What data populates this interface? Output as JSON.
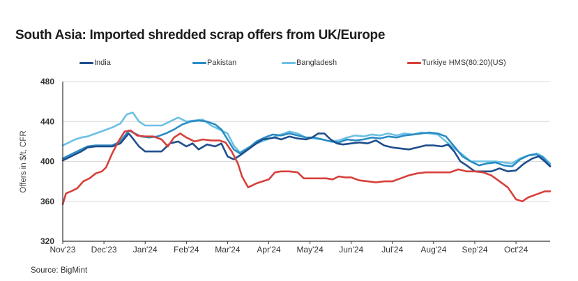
{
  "chart_data": {
    "type": "line",
    "title": "South Asia: Imported shredded scrap offers from UK/Europe",
    "xlabel": "",
    "ylabel": "Offers in $/t, CFR",
    "ylim": [
      320,
      480
    ],
    "yticks": [
      320,
      360,
      400,
      440,
      480
    ],
    "x_unit": "months since Nov'23",
    "xlim": [
      0,
      11.85
    ],
    "xticks": [
      {
        "x": 0,
        "label": "Nov'23"
      },
      {
        "x": 1,
        "label": "Dec'23"
      },
      {
        "x": 2,
        "label": "Jan'24"
      },
      {
        "x": 3,
        "label": "Feb'24"
      },
      {
        "x": 4,
        "label": "Mar'24"
      },
      {
        "x": 5,
        "label": "Apr'24"
      },
      {
        "x": 6,
        "label": "May'24"
      },
      {
        "x": 7,
        "label": "Jun'24"
      },
      {
        "x": 8,
        "label": "Jul'24"
      },
      {
        "x": 9,
        "label": "Aug'24"
      },
      {
        "x": 10,
        "label": "Sep'24"
      },
      {
        "x": 11,
        "label": "Oct'24"
      }
    ],
    "grid": "horizontal",
    "legend_position": "top",
    "series": [
      {
        "name": "India",
        "color": "#1f4e8c",
        "points": [
          [
            0,
            401
          ],
          [
            0.15,
            404
          ],
          [
            0.3,
            407
          ],
          [
            0.45,
            410
          ],
          [
            0.6,
            414
          ],
          [
            0.8,
            415
          ],
          [
            1.0,
            415
          ],
          [
            1.2,
            415
          ],
          [
            1.4,
            418
          ],
          [
            1.6,
            428
          ],
          [
            1.7,
            423
          ],
          [
            1.85,
            415
          ],
          [
            2.0,
            410
          ],
          [
            2.2,
            410
          ],
          [
            2.4,
            410
          ],
          [
            2.6,
            418
          ],
          [
            2.8,
            420
          ],
          [
            3.0,
            415
          ],
          [
            3.15,
            418
          ],
          [
            3.3,
            412
          ],
          [
            3.5,
            417
          ],
          [
            3.7,
            415
          ],
          [
            3.85,
            418
          ],
          [
            4.0,
            405
          ],
          [
            4.15,
            402
          ],
          [
            4.3,
            406
          ],
          [
            4.5,
            412
          ],
          [
            4.7,
            418
          ],
          [
            4.85,
            422
          ],
          [
            5.0,
            423
          ],
          [
            5.15,
            424
          ],
          [
            5.3,
            422
          ],
          [
            5.5,
            425
          ],
          [
            5.7,
            423
          ],
          [
            5.9,
            422
          ],
          [
            6.05,
            424
          ],
          [
            6.2,
            428
          ],
          [
            6.35,
            428
          ],
          [
            6.5,
            422
          ],
          [
            6.65,
            418
          ],
          [
            6.8,
            417
          ],
          [
            7.0,
            418
          ],
          [
            7.2,
            419
          ],
          [
            7.4,
            418
          ],
          [
            7.6,
            421
          ],
          [
            7.8,
            416
          ],
          [
            8.0,
            414
          ],
          [
            8.2,
            413
          ],
          [
            8.4,
            412
          ],
          [
            8.6,
            414
          ],
          [
            8.8,
            416
          ],
          [
            9.0,
            416
          ],
          [
            9.2,
            415
          ],
          [
            9.35,
            417
          ],
          [
            9.5,
            410
          ],
          [
            9.65,
            400
          ],
          [
            9.8,
            396
          ],
          [
            10.0,
            390
          ],
          [
            10.2,
            390
          ],
          [
            10.4,
            390
          ],
          [
            10.6,
            393
          ],
          [
            10.8,
            390
          ],
          [
            11.0,
            391
          ],
          [
            11.2,
            398
          ],
          [
            11.4,
            403
          ],
          [
            11.55,
            405
          ],
          [
            11.7,
            400
          ],
          [
            11.85,
            395
          ]
        ]
      },
      {
        "name": "Pakistan",
        "color": "#2b8cc4",
        "points": [
          [
            0,
            403
          ],
          [
            0.15,
            406
          ],
          [
            0.3,
            409
          ],
          [
            0.45,
            412
          ],
          [
            0.6,
            415
          ],
          [
            0.8,
            416
          ],
          [
            1.0,
            416
          ],
          [
            1.2,
            416
          ],
          [
            1.4,
            420
          ],
          [
            1.6,
            431
          ],
          [
            1.75,
            428
          ],
          [
            1.9,
            425
          ],
          [
            2.1,
            424
          ],
          [
            2.3,
            425
          ],
          [
            2.5,
            428
          ],
          [
            2.7,
            432
          ],
          [
            2.9,
            437
          ],
          [
            3.1,
            440
          ],
          [
            3.3,
            441
          ],
          [
            3.5,
            440
          ],
          [
            3.7,
            437
          ],
          [
            3.85,
            432
          ],
          [
            4.0,
            422
          ],
          [
            4.15,
            412
          ],
          [
            4.3,
            408
          ],
          [
            4.5,
            413
          ],
          [
            4.7,
            420
          ],
          [
            4.9,
            424
          ],
          [
            5.1,
            427
          ],
          [
            5.3,
            426
          ],
          [
            5.5,
            428
          ],
          [
            5.7,
            426
          ],
          [
            5.9,
            424
          ],
          [
            6.1,
            424
          ],
          [
            6.3,
            422
          ],
          [
            6.5,
            420
          ],
          [
            6.7,
            419
          ],
          [
            6.9,
            422
          ],
          [
            7.1,
            421
          ],
          [
            7.3,
            422
          ],
          [
            7.5,
            424
          ],
          [
            7.7,
            423
          ],
          [
            7.9,
            425
          ],
          [
            8.1,
            424
          ],
          [
            8.3,
            426
          ],
          [
            8.5,
            427
          ],
          [
            8.7,
            428
          ],
          [
            8.9,
            429
          ],
          [
            9.1,
            428
          ],
          [
            9.3,
            425
          ],
          [
            9.5,
            415
          ],
          [
            9.7,
            405
          ],
          [
            9.9,
            400
          ],
          [
            10.1,
            396
          ],
          [
            10.3,
            398
          ],
          [
            10.5,
            399
          ],
          [
            10.7,
            396
          ],
          [
            10.9,
            395
          ],
          [
            11.1,
            402
          ],
          [
            11.3,
            406
          ],
          [
            11.5,
            407
          ],
          [
            11.65,
            404
          ],
          [
            11.85,
            396
          ]
        ]
      },
      {
        "name": "Bangladesh",
        "color": "#6cc0e5",
        "points": [
          [
            0,
            416
          ],
          [
            0.15,
            419
          ],
          [
            0.3,
            422
          ],
          [
            0.45,
            424
          ],
          [
            0.6,
            425
          ],
          [
            0.8,
            428
          ],
          [
            1.0,
            431
          ],
          [
            1.2,
            434
          ],
          [
            1.4,
            438
          ],
          [
            1.55,
            447
          ],
          [
            1.7,
            449
          ],
          [
            1.85,
            440
          ],
          [
            2.0,
            436
          ],
          [
            2.2,
            436
          ],
          [
            2.4,
            436
          ],
          [
            2.6,
            440
          ],
          [
            2.8,
            444
          ],
          [
            3.0,
            440
          ],
          [
            3.2,
            441
          ],
          [
            3.4,
            442
          ],
          [
            3.6,
            436
          ],
          [
            3.8,
            432
          ],
          [
            4.0,
            428
          ],
          [
            4.15,
            416
          ],
          [
            4.3,
            409
          ],
          [
            4.5,
            414
          ],
          [
            4.7,
            418
          ],
          [
            4.9,
            421
          ],
          [
            5.1,
            424
          ],
          [
            5.3,
            427
          ],
          [
            5.5,
            430
          ],
          [
            5.7,
            428
          ],
          [
            5.9,
            424
          ],
          [
            6.1,
            423
          ],
          [
            6.3,
            422
          ],
          [
            6.5,
            420
          ],
          [
            6.7,
            421
          ],
          [
            6.9,
            424
          ],
          [
            7.1,
            426
          ],
          [
            7.3,
            425
          ],
          [
            7.5,
            427
          ],
          [
            7.7,
            426
          ],
          [
            7.9,
            428
          ],
          [
            8.1,
            426
          ],
          [
            8.3,
            428
          ],
          [
            8.5,
            427
          ],
          [
            8.7,
            429
          ],
          [
            8.9,
            428
          ],
          [
            9.1,
            427
          ],
          [
            9.3,
            420
          ],
          [
            9.5,
            413
          ],
          [
            9.7,
            407
          ],
          [
            9.9,
            400
          ],
          [
            10.1,
            400
          ],
          [
            10.3,
            400
          ],
          [
            10.5,
            400
          ],
          [
            10.7,
            399
          ],
          [
            10.9,
            398
          ],
          [
            11.1,
            403
          ],
          [
            11.3,
            406
          ],
          [
            11.5,
            408
          ],
          [
            11.65,
            405
          ],
          [
            11.85,
            398
          ]
        ]
      },
      {
        "name": "Turkiye HMS(80:20)(US)",
        "color": "#d7403b",
        "points": [
          [
            0,
            357
          ],
          [
            0.08,
            368
          ],
          [
            0.2,
            370
          ],
          [
            0.35,
            373
          ],
          [
            0.5,
            380
          ],
          [
            0.65,
            383
          ],
          [
            0.8,
            388
          ],
          [
            0.95,
            390
          ],
          [
            1.05,
            394
          ],
          [
            1.2,
            408
          ],
          [
            1.35,
            420
          ],
          [
            1.5,
            430
          ],
          [
            1.65,
            431
          ],
          [
            1.8,
            426
          ],
          [
            2.0,
            425
          ],
          [
            2.2,
            425
          ],
          [
            2.4,
            422
          ],
          [
            2.55,
            415
          ],
          [
            2.7,
            424
          ],
          [
            2.85,
            428
          ],
          [
            3.0,
            424
          ],
          [
            3.2,
            420
          ],
          [
            3.4,
            422
          ],
          [
            3.6,
            421
          ],
          [
            3.8,
            421
          ],
          [
            3.95,
            419
          ],
          [
            4.1,
            410
          ],
          [
            4.25,
            398
          ],
          [
            4.35,
            385
          ],
          [
            4.5,
            374
          ],
          [
            4.7,
            378
          ],
          [
            4.85,
            380
          ],
          [
            5.0,
            382
          ],
          [
            5.15,
            389
          ],
          [
            5.3,
            390
          ],
          [
            5.5,
            390
          ],
          [
            5.7,
            389
          ],
          [
            5.85,
            383
          ],
          [
            6.0,
            383
          ],
          [
            6.2,
            383
          ],
          [
            6.4,
            383
          ],
          [
            6.55,
            382
          ],
          [
            6.7,
            385
          ],
          [
            6.85,
            384
          ],
          [
            7.0,
            384
          ],
          [
            7.2,
            381
          ],
          [
            7.4,
            380
          ],
          [
            7.6,
            379
          ],
          [
            7.8,
            380
          ],
          [
            8.0,
            380
          ],
          [
            8.2,
            383
          ],
          [
            8.4,
            386
          ],
          [
            8.6,
            388
          ],
          [
            8.8,
            389
          ],
          [
            9.0,
            389
          ],
          [
            9.2,
            389
          ],
          [
            9.4,
            389
          ],
          [
            9.6,
            392
          ],
          [
            9.8,
            390
          ],
          [
            10.0,
            390
          ],
          [
            10.2,
            389
          ],
          [
            10.4,
            386
          ],
          [
            10.6,
            380
          ],
          [
            10.8,
            374
          ],
          [
            11.0,
            362
          ],
          [
            11.15,
            360
          ],
          [
            11.3,
            364
          ],
          [
            11.5,
            367
          ],
          [
            11.7,
            370
          ],
          [
            11.85,
            370
          ],
          [
            12.0,
            370
          ]
        ]
      }
    ]
  },
  "source": "Source: BigMint"
}
